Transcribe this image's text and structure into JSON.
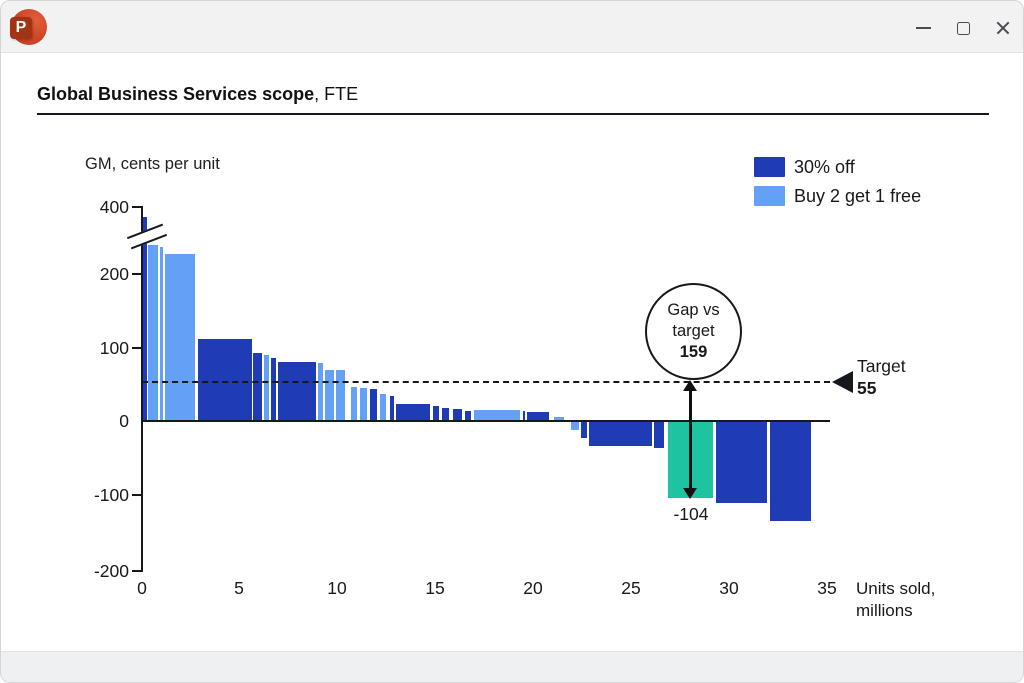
{
  "window": {
    "app": "PowerPoint",
    "icon_letter": "P",
    "icons": {
      "app": "powerpoint-icon",
      "minimize": "minimize-icon",
      "maximize": "maximize-icon",
      "close": "close-icon"
    }
  },
  "slide": {
    "title_bold": "Global Business Services scope",
    "title_suffix": ", FTE"
  },
  "chart_data": {
    "type": "bar",
    "subtype": "variable-width marginal GM curve",
    "title": "Global Business Services scope, FTE",
    "ylabel": "GM, cents per unit",
    "xlabel_line1": "Units sold,",
    "xlabel_line2": "millions",
    "grid": false,
    "legend_position": "top-right",
    "x_axis": {
      "range": [
        0,
        35
      ],
      "tick_labels": [
        "0",
        "5",
        "10",
        "15",
        "20",
        "25",
        "30",
        "35"
      ]
    },
    "y_axis": {
      "range": [
        -200,
        400
      ],
      "tick_labels": [
        "400",
        "200",
        "100",
        "0",
        "-100",
        "-200"
      ],
      "axis_break": true,
      "axis_break_below_tick": "400"
    },
    "target_line": {
      "label": "Target",
      "value": 55,
      "value_label": "55",
      "style": "dashed"
    },
    "gap_annotation": {
      "label_lines": [
        "Gap vs",
        "target"
      ],
      "value_label": "159",
      "arrow_from_value": 55,
      "arrow_to_value": -104,
      "min_label": "-104"
    },
    "legend": [
      {
        "label": "30% off",
        "color": "#1F3BB5"
      },
      {
        "label": "Buy 2 get 1 free",
        "color": "#64A0F6"
      }
    ],
    "colors": {
      "dark": "#1F3BB5",
      "light": "#64A0F6",
      "teal": "#1EC3A2"
    },
    "bars": [
      {
        "u": 0.0,
        "w": 0.34,
        "v": 600,
        "c": "dark",
        "clipped": true
      },
      {
        "u": 0.31,
        "w": 0.57,
        "v": 237,
        "c": "light"
      },
      {
        "u": 0.93,
        "w": 0.2,
        "v": 234,
        "c": "light"
      },
      {
        "u": 1.18,
        "w": 1.63,
        "v": 225,
        "c": "light"
      },
      {
        "u": 2.86,
        "w": 2.81,
        "v": 110,
        "c": "dark"
      },
      {
        "u": 5.72,
        "w": 0.51,
        "v": 91,
        "c": "dark"
      },
      {
        "u": 6.28,
        "w": 0.29,
        "v": 88,
        "c": "light"
      },
      {
        "u": 6.62,
        "w": 0.29,
        "v": 85,
        "c": "dark"
      },
      {
        "u": 6.95,
        "w": 2.02,
        "v": 79,
        "c": "dark"
      },
      {
        "u": 9.02,
        "w": 0.29,
        "v": 78,
        "c": "light"
      },
      {
        "u": 9.35,
        "w": 0.51,
        "v": 68,
        "c": "light"
      },
      {
        "u": 9.96,
        "w": 0.51,
        "v": 68,
        "c": "light"
      },
      {
        "u": 10.68,
        "w": 0.36,
        "v": 46,
        "c": "light"
      },
      {
        "u": 11.14,
        "w": 0.41,
        "v": 44,
        "c": "light"
      },
      {
        "u": 11.65,
        "w": 0.41,
        "v": 43,
        "c": "dark"
      },
      {
        "u": 12.16,
        "w": 0.36,
        "v": 36,
        "c": "light"
      },
      {
        "u": 12.72,
        "w": 0.22,
        "v": 33,
        "c": "dark"
      },
      {
        "u": 12.98,
        "w": 1.79,
        "v": 23,
        "c": "dark"
      },
      {
        "u": 14.87,
        "w": 0.36,
        "v": 19,
        "c": "dark"
      },
      {
        "u": 15.33,
        "w": 0.41,
        "v": 17,
        "c": "dark"
      },
      {
        "u": 15.89,
        "w": 0.51,
        "v": 15,
        "c": "dark"
      },
      {
        "u": 16.51,
        "w": 0.36,
        "v": 13,
        "c": "dark"
      },
      {
        "u": 16.97,
        "w": 2.4,
        "v": 14,
        "c": "light"
      },
      {
        "u": 19.47,
        "w": 0.2,
        "v": 13,
        "c": "dark"
      },
      {
        "u": 19.72,
        "w": 1.18,
        "v": 12,
        "c": "dark"
      },
      {
        "u": 21.05,
        "w": 0.56,
        "v": 5,
        "c": "light"
      },
      {
        "u": 21.92,
        "w": 0.46,
        "v": -13,
        "c": "light"
      },
      {
        "u": 22.43,
        "w": 0.36,
        "v": -23,
        "c": "dark"
      },
      {
        "u": 22.84,
        "w": 3.27,
        "v": -34,
        "c": "dark"
      },
      {
        "u": 26.17,
        "w": 0.56,
        "v": -37,
        "c": "dark"
      },
      {
        "u": 26.88,
        "w": 2.35,
        "v": -104,
        "c": "teal"
      },
      {
        "u": 29.33,
        "w": 2.66,
        "v": -112,
        "c": "dark"
      },
      {
        "u": 32.09,
        "w": 2.15,
        "v": -136,
        "c": "dark"
      }
    ]
  }
}
